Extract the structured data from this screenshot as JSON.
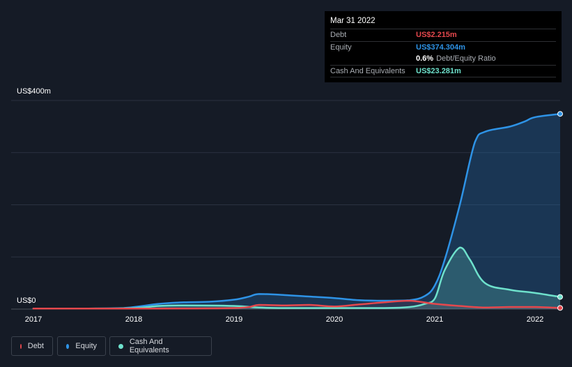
{
  "tooltip": {
    "date": "Mar 31 2022",
    "debt_label": "Debt",
    "debt_value": "US$2.215m",
    "equity_label": "Equity",
    "equity_value": "US$374.304m",
    "ratio_value": "0.6%",
    "ratio_label": "Debt/Equity Ratio",
    "cash_label": "Cash And Equivalents",
    "cash_value": "US$23.281m"
  },
  "legend": {
    "debt": "Debt",
    "equity": "Equity",
    "cash": "Cash And Equivalents"
  },
  "colors": {
    "debt": "#e5484d",
    "equity": "#2e93e6",
    "cash": "#6ee1cc",
    "background": "#151b26"
  },
  "chart_data": {
    "type": "area",
    "y_top_label": "US$400m",
    "y_bottom_label": "US$0",
    "ylim": [
      0,
      400
    ],
    "xlim": [
      2017.0,
      2022.25
    ],
    "x_ticks": [
      "2017",
      "2018",
      "2019",
      "2020",
      "2021",
      "2022"
    ],
    "grid": true,
    "legend_position": "bottom-left",
    "series": [
      {
        "name": "Debt",
        "x": [
          2017.0,
          2018.0,
          2019.0,
          2019.25,
          2019.5,
          2019.75,
          2020.0,
          2020.25,
          2020.5,
          2020.75,
          2021.0,
          2021.25,
          2021.5,
          2021.75,
          2022.0,
          2022.25
        ],
        "values": [
          1,
          1,
          2,
          8,
          7,
          8,
          5,
          9,
          13,
          16,
          10,
          6,
          3,
          4,
          4,
          2.2
        ]
      },
      {
        "name": "Equity",
        "x": [
          2017.0,
          2017.5,
          2017.9,
          2018.25,
          2018.5,
          2018.75,
          2019.0,
          2019.15,
          2019.25,
          2019.5,
          2019.75,
          2020.0,
          2020.25,
          2020.5,
          2020.75,
          2020.9,
          2021.0,
          2021.1,
          2021.25,
          2021.4,
          2021.5,
          2021.75,
          2021.9,
          2022.0,
          2022.25
        ],
        "values": [
          1,
          1,
          2,
          10,
          13,
          14,
          18,
          24,
          29,
          27,
          24,
          21,
          17,
          16,
          17,
          25,
          45,
          95,
          200,
          320,
          340,
          350,
          360,
          368,
          374.3
        ]
      },
      {
        "name": "Cash And Equivalents",
        "x": [
          2017.0,
          2017.5,
          2018.0,
          2018.25,
          2018.5,
          2019.0,
          2019.25,
          2019.5,
          2020.0,
          2020.5,
          2020.75,
          2020.9,
          2021.0,
          2021.1,
          2021.25,
          2021.35,
          2021.5,
          2021.75,
          2022.0,
          2022.25
        ],
        "values": [
          1,
          1,
          2,
          6,
          7,
          6,
          3,
          2,
          2,
          2,
          4,
          10,
          20,
          75,
          118,
          95,
          50,
          37,
          31,
          23.3
        ]
      }
    ]
  }
}
